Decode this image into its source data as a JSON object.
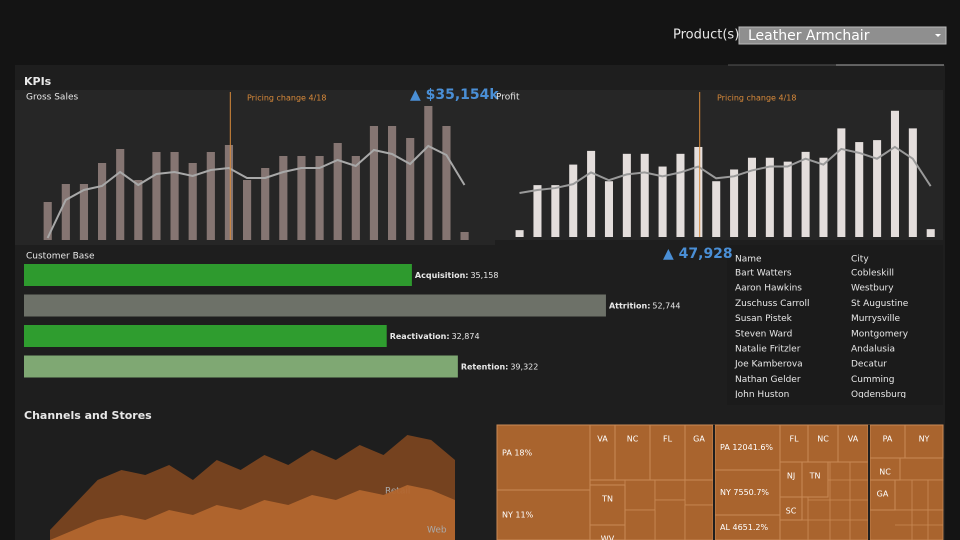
{
  "filter": {
    "label": "Product(s)",
    "value": "Leather Armchair"
  },
  "section_title": "KPIs",
  "chart_data": [
    {
      "type": "bar",
      "title": "Gross Sales",
      "annotation": "Pricing change 4/18",
      "kpi": "▲ $35,154k",
      "color": "#857572",
      "trend_color": "#a8a8a8",
      "ylim": [
        0,
        140
      ],
      "values": [
        38,
        56,
        56,
        77,
        91,
        60,
        88,
        88,
        77,
        88,
        95,
        60,
        72,
        84,
        84,
        84,
        97,
        84,
        114,
        114,
        102,
        134,
        114,
        8
      ],
      "trend": [
        2,
        40,
        50,
        54,
        68,
        55,
        66,
        68,
        64,
        70,
        72,
        62,
        62,
        68,
        72,
        72,
        80,
        74,
        90,
        86,
        76,
        94,
        85,
        55
      ]
    },
    {
      "type": "bar",
      "title": "Profit",
      "annotation": "Pricing change 4/18",
      "kpi": "▲ 47,928",
      "color": "#e4dedc",
      "trend_color": "#9a9a9a",
      "ylim": [
        0,
        140
      ],
      "values": [
        7,
        53,
        53,
        74,
        88,
        57,
        85,
        85,
        72,
        85,
        92,
        57,
        69,
        81,
        81,
        77,
        87,
        81,
        111,
        97,
        99,
        129,
        111,
        8
      ],
      "trend": [
        45,
        48,
        50,
        54,
        66,
        58,
        64,
        66,
        62,
        66,
        72,
        60,
        62,
        68,
        72,
        72,
        80,
        74,
        90,
        86,
        80,
        92,
        80,
        52
      ]
    },
    {
      "type": "hbar",
      "title": "Customer Base",
      "xlim": [
        0,
        60000
      ],
      "categories": [
        "Acquisition:",
        "Attrition:",
        "Reactivation:",
        "Retention:"
      ],
      "values": [
        35158,
        52744,
        32874,
        39322
      ],
      "value_labels": [
        "35,158",
        "52,744",
        "32,874",
        "39,322"
      ],
      "colors": [
        "#2e9a2e",
        "#6d7168",
        "#2f9d2f",
        "#7fa873"
      ]
    },
    {
      "type": "area",
      "title": "Channels and Stores",
      "ylim": [
        0,
        115
      ],
      "series": [
        {
          "name": "Retail",
          "color": "#7a4520",
          "values": [
            10,
            35,
            60,
            70,
            65,
            75,
            60,
            80,
            70,
            85,
            75,
            90,
            80,
            95,
            85,
            105,
            100,
            80
          ]
        },
        {
          "name": "Web",
          "color": "#b2662e",
          "values": [
            0,
            10,
            20,
            25,
            20,
            30,
            25,
            35,
            30,
            40,
            35,
            45,
            40,
            50,
            45,
            55,
            50,
            40
          ]
        }
      ]
    }
  ],
  "table": {
    "header": [
      "Name",
      "City"
    ],
    "rows": [
      [
        "Bart Watters",
        "Cobleskill"
      ],
      [
        "Aaron Hawkins",
        "Westbury"
      ],
      [
        "Zuschuss Carroll",
        "St Augustine"
      ],
      [
        "Susan Pistek",
        "Murrysville"
      ],
      [
        "Steven Ward",
        "Montgomery"
      ],
      [
        "Natalie Fritzler",
        "Andalusia"
      ],
      [
        "Joe Kamberova",
        "Decatur"
      ],
      [
        "Nathan Gelder",
        "Cumming"
      ],
      [
        "John Huston",
        "Ogdensburg"
      ]
    ]
  },
  "treemaps": [
    [
      "PA 18%",
      "VA",
      "NC",
      "FL",
      "GA",
      "NY 11%",
      "TN",
      "WV"
    ],
    [
      "PA 12041.6%",
      "FL",
      "NC",
      "VA",
      "NJ",
      "TN",
      "NY 7550.7%",
      "SC",
      "AL 4651.2%"
    ],
    [
      "PA",
      "NY",
      "NC",
      "GA"
    ]
  ]
}
